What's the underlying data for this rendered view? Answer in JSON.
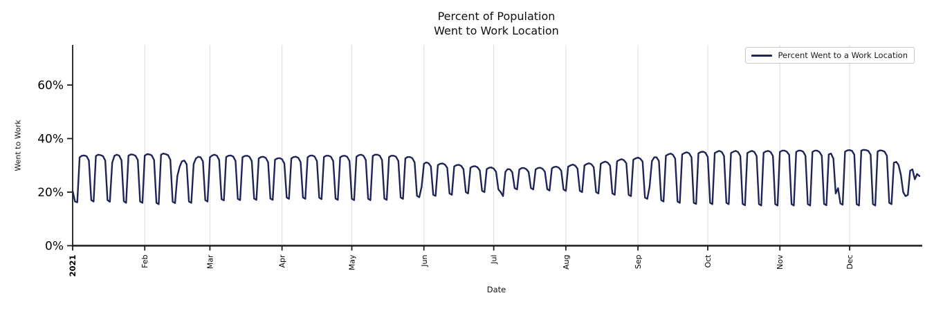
{
  "title": {
    "line1": "Percent of Population",
    "line2": "Went to Work Location"
  },
  "axes": {
    "x_label": "Date",
    "y_label": "Went to Work"
  },
  "legend": {
    "label": "Percent Went to a Work Location"
  },
  "colors": {
    "line": "#1f2456",
    "grid": "#dcdcdc",
    "spine": "#1a1a1a",
    "text": "#000000",
    "legend_border": "#c9c9c9",
    "background": "#ffffff"
  },
  "chart_data": {
    "type": "line",
    "title": "Percent of Population Went to Work Location",
    "xlabel": "Date",
    "ylabel": "Went to Work",
    "legend_position": "upper right",
    "grid": "vertical-month-gridlines",
    "ylim": [
      0,
      75
    ],
    "y_ticks": [
      {
        "label": "0%",
        "value": 0
      },
      {
        "label": "20%",
        "value": 20
      },
      {
        "label": "40%",
        "value": 40
      },
      {
        "label": "60%",
        "value": 60
      }
    ],
    "x_ticks": [
      {
        "label": "2021",
        "day": 0,
        "bold": true
      },
      {
        "label": "Feb",
        "day": 31
      },
      {
        "label": "Mar",
        "day": 59
      },
      {
        "label": "Apr",
        "day": 90
      },
      {
        "label": "May",
        "day": 120
      },
      {
        "label": "Jun",
        "day": 151
      },
      {
        "label": "Jul",
        "day": 181
      },
      {
        "label": "Aug",
        "day": 212
      },
      {
        "label": "Sep",
        "day": 243
      },
      {
        "label": "Oct",
        "day": 273
      },
      {
        "label": "Nov",
        "day": 304
      },
      {
        "label": "Dec",
        "day": 334
      }
    ],
    "series": [
      {
        "name": "Percent Went to a Work Location",
        "start_date": "2021-01-01",
        "frequency": "daily",
        "unit": "percent",
        "values": [
          20.5,
          16.5,
          16.2,
          33.0,
          33.6,
          33.7,
          33.4,
          31.8,
          17.0,
          16.5,
          33.5,
          34.0,
          33.8,
          33.5,
          31.8,
          17.0,
          16.4,
          31.0,
          33.6,
          34.0,
          33.6,
          31.9,
          16.6,
          16.0,
          33.6,
          34.1,
          34.0,
          33.6,
          32.0,
          16.5,
          16.0,
          33.6,
          34.2,
          34.1,
          33.7,
          32.0,
          16.0,
          15.5,
          34.0,
          34.4,
          34.2,
          33.8,
          32.1,
          16.4,
          15.9,
          26.0,
          29.5,
          31.5,
          31.8,
          30.4,
          16.5,
          16.0,
          30.5,
          32.6,
          33.2,
          33.0,
          31.5,
          17.0,
          16.5,
          33.0,
          33.7,
          34.0,
          33.6,
          32.0,
          17.4,
          16.9,
          33.1,
          33.6,
          33.7,
          33.3,
          31.7,
          17.5,
          17.0,
          33.0,
          33.5,
          33.6,
          33.2,
          31.6,
          17.6,
          17.1,
          32.6,
          33.1,
          33.2,
          32.8,
          31.2,
          17.6,
          17.1,
          32.1,
          32.6,
          32.7,
          32.3,
          30.7,
          18.0,
          17.5,
          32.6,
          33.1,
          33.2,
          32.8,
          31.2,
          18.0,
          17.5,
          33.0,
          33.6,
          33.7,
          33.3,
          31.6,
          17.9,
          17.4,
          33.1,
          33.6,
          33.6,
          33.2,
          31.6,
          17.6,
          17.1,
          33.0,
          33.5,
          33.6,
          33.2,
          31.6,
          17.5,
          17.0,
          33.2,
          33.8,
          34.0,
          33.6,
          32.0,
          17.5,
          17.0,
          33.5,
          34.0,
          34.0,
          33.6,
          32.0,
          17.6,
          17.1,
          33.1,
          33.6,
          33.6,
          33.2,
          31.6,
          18.0,
          17.5,
          32.6,
          33.1,
          33.1,
          32.7,
          31.1,
          18.6,
          18.1,
          22.0,
          30.6,
          31.1,
          30.8,
          29.6,
          19.0,
          18.6,
          30.1,
          30.6,
          30.7,
          30.3,
          29.1,
          19.5,
          19.0,
          29.6,
          30.1,
          30.2,
          29.8,
          28.6,
          20.0,
          19.5,
          29.1,
          29.6,
          29.7,
          29.3,
          28.1,
          20.5,
          20.0,
          28.6,
          29.1,
          29.2,
          28.8,
          27.6,
          21.0,
          20.0,
          18.5,
          27.6,
          28.6,
          28.5,
          27.4,
          21.5,
          21.0,
          28.4,
          29.0,
          29.0,
          28.6,
          27.5,
          21.5,
          21.0,
          28.5,
          29.0,
          29.1,
          28.7,
          27.6,
          21.1,
          20.6,
          28.9,
          29.4,
          29.5,
          29.1,
          28.0,
          21.0,
          20.5,
          29.5,
          30.0,
          30.3,
          29.9,
          28.8,
          20.5,
          20.0,
          30.0,
          30.5,
          30.8,
          30.4,
          29.3,
          20.0,
          19.5,
          30.6,
          31.1,
          31.4,
          31.0,
          29.9,
          19.5,
          19.0,
          31.5,
          32.0,
          32.3,
          31.9,
          30.8,
          19.0,
          18.5,
          32.1,
          32.6,
          32.9,
          32.5,
          31.4,
          18.0,
          17.5,
          22.0,
          31.6,
          33.0,
          33.0,
          31.6,
          17.0,
          16.5,
          33.6,
          34.1,
          34.4,
          34.0,
          32.5,
          16.5,
          16.0,
          34.1,
          34.6,
          34.9,
          34.5,
          33.0,
          16.0,
          15.6,
          34.5,
          35.0,
          35.1,
          34.7,
          33.1,
          16.0,
          15.5,
          34.6,
          35.1,
          35.4,
          35.0,
          33.5,
          16.0,
          15.5,
          34.6,
          35.1,
          35.4,
          35.0,
          33.5,
          15.6,
          15.1,
          34.6,
          35.1,
          35.4,
          35.0,
          33.5,
          15.5,
          15.0,
          34.7,
          35.2,
          35.4,
          35.0,
          33.5,
          15.5,
          15.0,
          35.0,
          35.5,
          35.5,
          35.1,
          33.9,
          15.5,
          15.0,
          35.0,
          35.5,
          35.5,
          35.1,
          33.6,
          15.5,
          15.0,
          35.0,
          35.5,
          35.5,
          35.0,
          33.6,
          15.6,
          15.1,
          34.1,
          34.4,
          32.5,
          19.5,
          21.5,
          15.8,
          15.3,
          35.1,
          35.6,
          35.7,
          35.4,
          34.0,
          15.5,
          15.0,
          35.5,
          35.8,
          35.7,
          35.4,
          34.0,
          15.5,
          15.0,
          35.2,
          35.6,
          35.5,
          35.1,
          33.6,
          16.0,
          15.5,
          31.0,
          31.3,
          30.2,
          26.5,
          20.0,
          18.5,
          19.0,
          28.0,
          28.5,
          24.8,
          26.8,
          26.0
        ]
      }
    ]
  }
}
